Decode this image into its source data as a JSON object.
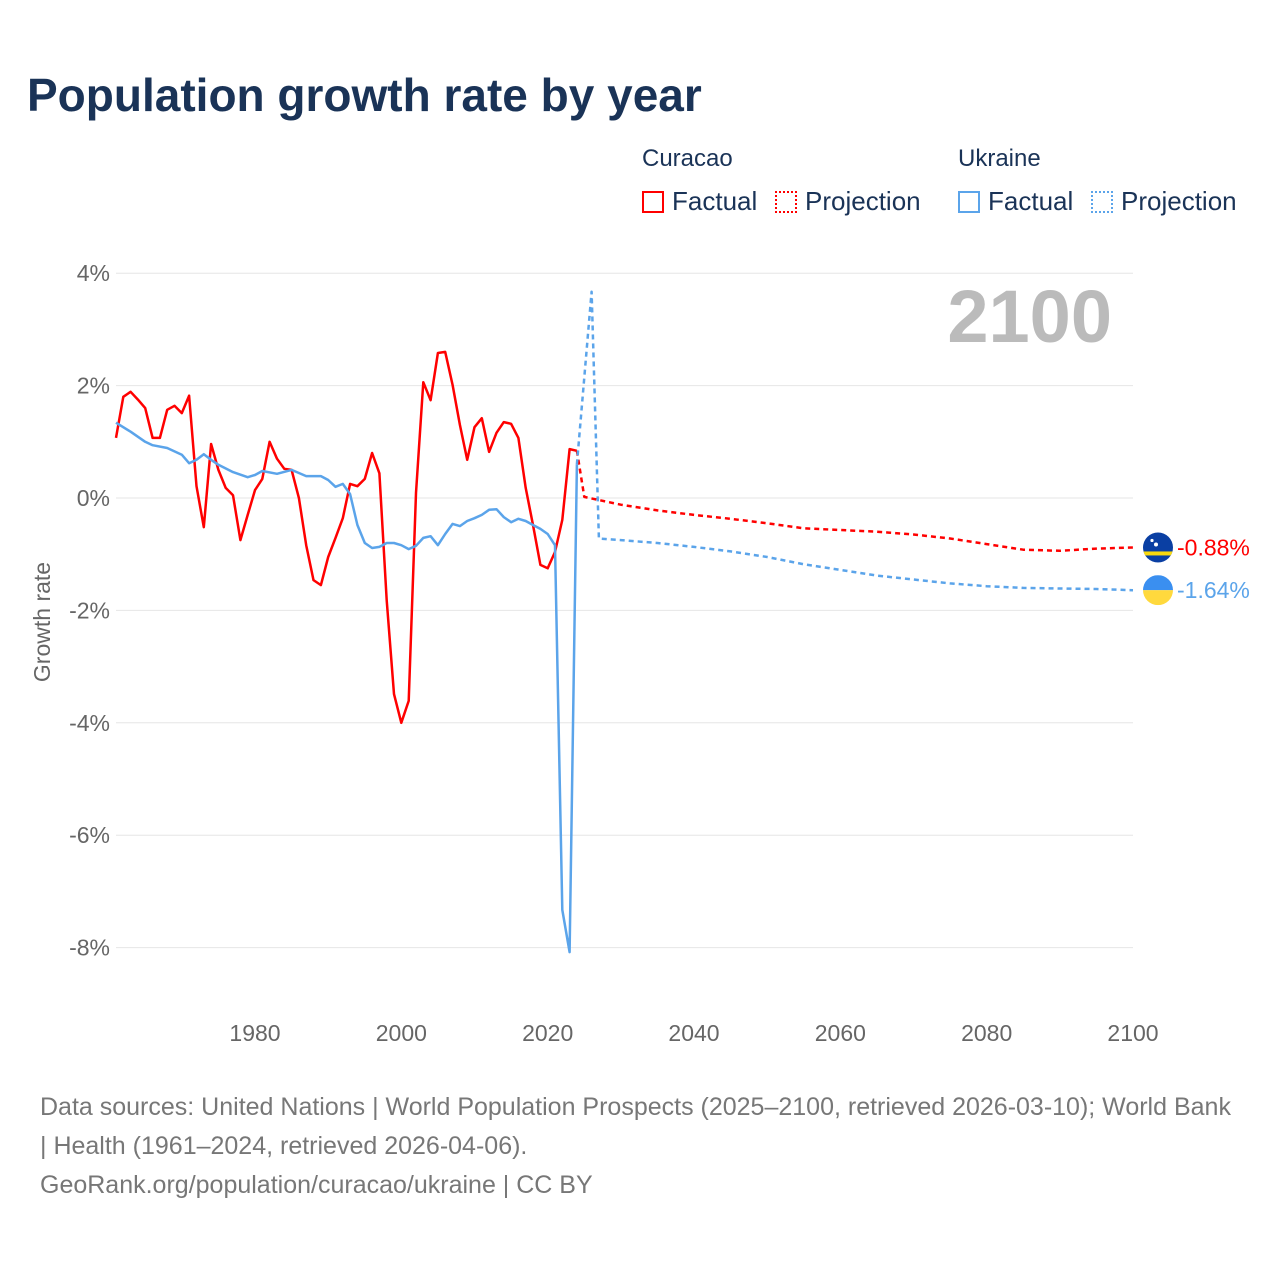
{
  "title": "Population growth rate by year",
  "legend": {
    "groups": [
      {
        "name": "Curacao",
        "color": "#ff0000",
        "items": [
          "Factual",
          "Projection"
        ]
      },
      {
        "name": "Ukraine",
        "color": "#5ba4ea",
        "items": [
          "Factual",
          "Projection"
        ]
      }
    ]
  },
  "year_badge": "2100",
  "footer": {
    "sources": "Data sources: United Nations | World Population Prospects (2025–2100, retrieved 2026-03-10); World Bank | Health (1961–2024, retrieved 2026-04-06).",
    "credit": "GeoRank.org/population/curacao/ukraine | CC BY"
  },
  "chart_data": {
    "type": "line",
    "title": "Population growth rate by year",
    "xlabel": "",
    "ylabel": "Growth rate",
    "xlim": [
      1961,
      2100
    ],
    "ylim": [
      -9,
      4.5
    ],
    "xticks": [
      1980,
      2000,
      2020,
      2040,
      2060,
      2080,
      2100
    ],
    "yticks": [
      4,
      2,
      0,
      -2,
      -4,
      -6,
      -8
    ],
    "ytick_labels": [
      "4%",
      "2%",
      "0%",
      "-2%",
      "-4%",
      "-6%",
      "-8%"
    ],
    "grid": true,
    "series": [
      {
        "name": "Curacao Factual",
        "color": "#ff0000",
        "dashed": false,
        "x": [
          1961,
          1962,
          1963,
          1964,
          1965,
          1966,
          1967,
          1968,
          1969,
          1970,
          1971,
          1972,
          1973,
          1974,
          1975,
          1976,
          1977,
          1978,
          1979,
          1980,
          1981,
          1982,
          1983,
          1984,
          1985,
          1986,
          1987,
          1988,
          1989,
          1990,
          1991,
          1992,
          1993,
          1994,
          1995,
          1996,
          1997,
          1998,
          1999,
          2000,
          2001,
          2002,
          2003,
          2004,
          2005,
          2006,
          2007,
          2008,
          2009,
          2010,
          2011,
          2012,
          2013,
          2014,
          2015,
          2016,
          2017,
          2018,
          2019,
          2020,
          2021,
          2022,
          2023,
          2024
        ],
        "y": [
          1.07,
          1.8,
          1.89,
          1.75,
          1.6,
          1.07,
          1.07,
          1.57,
          1.64,
          1.51,
          1.82,
          0.21,
          -0.52,
          0.96,
          0.5,
          0.18,
          0.05,
          -0.75,
          -0.3,
          0.14,
          0.34,
          1.0,
          0.7,
          0.52,
          0.5,
          0.0,
          -0.84,
          -1.46,
          -1.55,
          -1.05,
          -0.71,
          -0.36,
          0.25,
          0.21,
          0.34,
          0.8,
          0.44,
          -1.82,
          -3.49,
          -4.0,
          -3.61,
          0.09,
          2.06,
          1.74,
          2.58,
          2.6,
          2.01,
          1.3,
          0.68,
          1.26,
          1.42,
          0.82,
          1.16,
          1.35,
          1.32,
          1.07,
          0.18,
          -0.48,
          -1.19,
          -1.25,
          -0.96,
          -0.39,
          0.87,
          0.84
        ]
      },
      {
        "name": "Curacao Projection",
        "color": "#ff0000",
        "dashed": true,
        "x": [
          2024,
          2025,
          2030,
          2035,
          2040,
          2045,
          2050,
          2055,
          2060,
          2065,
          2070,
          2075,
          2080,
          2085,
          2090,
          2095,
          2100
        ],
        "y": [
          0.84,
          0.02,
          -0.12,
          -0.22,
          -0.3,
          -0.37,
          -0.45,
          -0.54,
          -0.57,
          -0.6,
          -0.65,
          -0.72,
          -0.82,
          -0.92,
          -0.94,
          -0.9,
          -0.88
        ]
      },
      {
        "name": "Ukraine Factual",
        "color": "#5ba4ea",
        "dashed": false,
        "x": [
          1961,
          1963,
          1965,
          1966,
          1968,
          1970,
          1971,
          1972,
          1973,
          1974,
          1975,
          1977,
          1979,
          1980,
          1981,
          1983,
          1985,
          1987,
          1989,
          1990,
          1991,
          1992,
          1993,
          1994,
          1995,
          1996,
          1997,
          1998,
          1999,
          2000,
          2001,
          2002,
          2003,
          2004,
          2005,
          2006,
          2007,
          2008,
          2009,
          2010,
          2011,
          2012,
          2013,
          2014,
          2015,
          2016,
          2017,
          2018,
          2019,
          2020,
          2021,
          2022,
          2023,
          2024
        ],
        "y": [
          1.34,
          1.18,
          1.0,
          0.94,
          0.89,
          0.77,
          0.62,
          0.68,
          0.78,
          0.68,
          0.59,
          0.46,
          0.37,
          0.41,
          0.48,
          0.43,
          0.5,
          0.39,
          0.39,
          0.32,
          0.2,
          0.25,
          0.07,
          -0.48,
          -0.8,
          -0.89,
          -0.87,
          -0.8,
          -0.8,
          -0.84,
          -0.91,
          -0.85,
          -0.71,
          -0.68,
          -0.84,
          -0.64,
          -0.46,
          -0.5,
          -0.41,
          -0.36,
          -0.3,
          -0.21,
          -0.2,
          -0.34,
          -0.43,
          -0.37,
          -0.41,
          -0.48,
          -0.55,
          -0.64,
          -0.84,
          -7.33,
          -8.08,
          0.6
        ]
      },
      {
        "name": "Ukraine Projection",
        "color": "#5ba4ea",
        "dashed": true,
        "x": [
          2024,
          2026,
          2027,
          2030,
          2035,
          2040,
          2045,
          2050,
          2055,
          2060,
          2065,
          2070,
          2075,
          2080,
          2085,
          2090,
          2095,
          2100
        ],
        "y": [
          0.6,
          3.67,
          -0.72,
          -0.75,
          -0.8,
          -0.87,
          -0.95,
          -1.05,
          -1.18,
          -1.28,
          -1.38,
          -1.45,
          -1.52,
          -1.57,
          -1.6,
          -1.61,
          -1.62,
          -1.64
        ]
      }
    ],
    "end_labels": [
      {
        "series": "Curacao",
        "value": "-0.88%",
        "color": "#ff0000",
        "flag": "curacao-flag"
      },
      {
        "series": "Ukraine",
        "value": "-1.64%",
        "color": "#5ba4ea",
        "flag": "ukraine-flag"
      }
    ]
  }
}
